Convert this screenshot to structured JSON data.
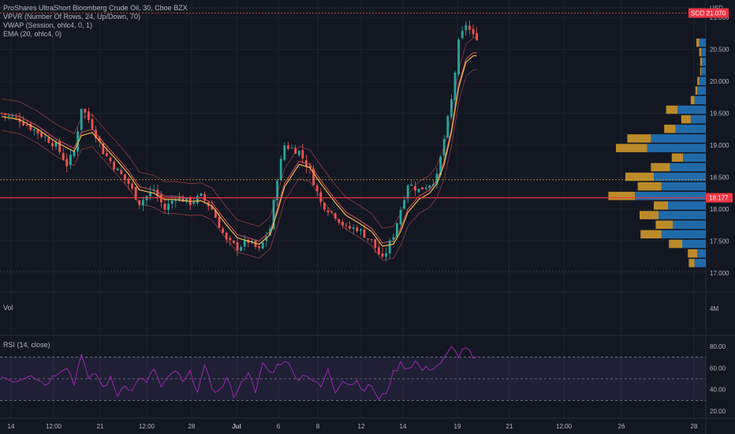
{
  "legend": {
    "title": "ProShares UltraShort Bloomberg Crude Oil, 30, Cboe BZX",
    "vpvr": "VPVR (Number Of Rows, 24, Up/Down, 70)",
    "vwap": "VWAP (Session, ohlc4, 0, 1)",
    "ema": "EMA (20, ohlc4, 0)",
    "vol": "Vol",
    "rsi": "RSI (14, close)"
  },
  "price_axis": {
    "currency": "USD",
    "vol_tick": "4M"
  },
  "price_tag": {
    "symbol": "SCO",
    "price": "21.070"
  },
  "cursor_price": "18.177",
  "chart_data": {
    "type": "candlestick",
    "title": "ProShares UltraShort Bloomberg Crude Oil, 30, Cboe BZX",
    "x_ticks": [
      "14",
      "12:00",
      "21",
      "12:00",
      "28",
      "Jul",
      "6",
      "8",
      "12",
      "14",
      "19",
      "21",
      "12:00",
      "26",
      "28"
    ],
    "y_ticks": [
      "17.000",
      "17.500",
      "18.000",
      "18.500",
      "19.000",
      "19.500",
      "20.000",
      "20.500",
      "21.000"
    ],
    "ylim": [
      16.95,
      21.15
    ],
    "close_path": [
      [
        0,
        19.5
      ],
      [
        5,
        19.4
      ],
      [
        10,
        19.2
      ],
      [
        15,
        19.0
      ],
      [
        18,
        18.7
      ],
      [
        20,
        18.9
      ],
      [
        22,
        19.6
      ],
      [
        25,
        19.3
      ],
      [
        28,
        18.9
      ],
      [
        32,
        18.6
      ],
      [
        35,
        18.4
      ],
      [
        38,
        18.1
      ],
      [
        42,
        18.3
      ],
      [
        45,
        18.0
      ],
      [
        48,
        18.2
      ],
      [
        52,
        18.1
      ],
      [
        55,
        18.2
      ],
      [
        58,
        18.0
      ],
      [
        62,
        17.5
      ],
      [
        65,
        17.4
      ],
      [
        68,
        17.5
      ],
      [
        71,
        17.35
      ],
      [
        74,
        17.7
      ],
      [
        76,
        18.5
      ],
      [
        78,
        19.0
      ],
      [
        82,
        18.9
      ],
      [
        85,
        18.6
      ],
      [
        88,
        18.1
      ],
      [
        92,
        17.9
      ],
      [
        95,
        17.7
      ],
      [
        98,
        17.7
      ],
      [
        102,
        17.5
      ],
      [
        105,
        17.2
      ],
      [
        108,
        17.6
      ],
      [
        110,
        18.0
      ],
      [
        112,
        18.4
      ],
      [
        115,
        18.3
      ],
      [
        118,
        18.4
      ],
      [
        120,
        18.5
      ],
      [
        122,
        19.1
      ],
      [
        124,
        19.7
      ],
      [
        126,
        20.6
      ],
      [
        128,
        20.9
      ],
      [
        130,
        20.7
      ]
    ],
    "ema_path": [
      [
        0,
        19.45
      ],
      [
        5,
        19.4
      ],
      [
        10,
        19.25
      ],
      [
        15,
        19.05
      ],
      [
        20,
        18.9
      ],
      [
        22,
        19.15
      ],
      [
        25,
        19.2
      ],
      [
        28,
        19.0
      ],
      [
        32,
        18.75
      ],
      [
        35,
        18.55
      ],
      [
        38,
        18.3
      ],
      [
        42,
        18.25
      ],
      [
        45,
        18.15
      ],
      [
        48,
        18.15
      ],
      [
        52,
        18.12
      ],
      [
        55,
        18.13
      ],
      [
        58,
        18.05
      ],
      [
        62,
        17.75
      ],
      [
        65,
        17.55
      ],
      [
        68,
        17.5
      ],
      [
        71,
        17.45
      ],
      [
        74,
        17.6
      ],
      [
        76,
        17.95
      ],
      [
        78,
        18.35
      ],
      [
        82,
        18.7
      ],
      [
        85,
        18.65
      ],
      [
        88,
        18.4
      ],
      [
        92,
        18.1
      ],
      [
        95,
        17.9
      ],
      [
        98,
        17.8
      ],
      [
        102,
        17.65
      ],
      [
        105,
        17.42
      ],
      [
        108,
        17.45
      ],
      [
        110,
        17.65
      ],
      [
        112,
        17.95
      ],
      [
        115,
        18.15
      ],
      [
        118,
        18.25
      ],
      [
        120,
        18.4
      ],
      [
        122,
        18.7
      ],
      [
        124,
        19.2
      ],
      [
        126,
        19.9
      ],
      [
        128,
        20.3
      ],
      [
        130,
        20.4
      ]
    ],
    "volume_profile": [
      {
        "price": 17.15,
        "up": 6,
        "down": 12
      },
      {
        "price": 17.3,
        "up": 10,
        "down": 9
      },
      {
        "price": 17.45,
        "up": 14,
        "down": 25
      },
      {
        "price": 17.6,
        "up": 22,
        "down": 47
      },
      {
        "price": 17.75,
        "up": 18,
        "down": 35
      },
      {
        "price": 17.9,
        "up": 20,
        "down": 50
      },
      {
        "price": 18.05,
        "up": 15,
        "down": 40
      },
      {
        "price": 18.2,
        "up": 28,
        "down": 75
      },
      {
        "price": 18.35,
        "up": 25,
        "down": 47
      },
      {
        "price": 18.5,
        "up": 30,
        "down": 55
      },
      {
        "price": 18.65,
        "up": 20,
        "down": 38
      },
      {
        "price": 18.8,
        "up": 12,
        "down": 24
      },
      {
        "price": 18.95,
        "up": 33,
        "down": 62
      },
      {
        "price": 19.1,
        "up": 25,
        "down": 58
      },
      {
        "price": 19.25,
        "up": 12,
        "down": 32
      },
      {
        "price": 19.4,
        "up": 10,
        "down": 16
      },
      {
        "price": 19.55,
        "up": 12,
        "down": 30
      },
      {
        "price": 19.7,
        "up": 4,
        "down": 12
      },
      {
        "price": 19.85,
        "up": 2,
        "down": 9
      },
      {
        "price": 20.0,
        "up": 2,
        "down": 7
      },
      {
        "price": 20.15,
        "up": 1,
        "down": 5
      },
      {
        "price": 20.3,
        "up": 2,
        "down": 4
      },
      {
        "price": 20.45,
        "up": 2,
        "down": 5
      },
      {
        "price": 20.6,
        "up": 3,
        "down": 7
      }
    ],
    "rsi": {
      "y_ticks": [
        "20.00",
        "40.00",
        "60.00",
        "80.00"
      ],
      "ylim": [
        15,
        85
      ],
      "upper_band": 70,
      "middle": 50,
      "lower_band": 30,
      "path": [
        [
          0,
          52
        ],
        [
          4,
          48
        ],
        [
          8,
          55
        ],
        [
          12,
          45
        ],
        [
          16,
          58
        ],
        [
          18,
          62
        ],
        [
          20,
          45
        ],
        [
          22,
          75
        ],
        [
          24,
          48
        ],
        [
          26,
          55
        ],
        [
          28,
          42
        ],
        [
          30,
          50
        ],
        [
          32,
          35
        ],
        [
          34,
          46
        ],
        [
          36,
          38
        ],
        [
          38,
          52
        ],
        [
          40,
          45
        ],
        [
          42,
          60
        ],
        [
          44,
          42
        ],
        [
          46,
          50
        ],
        [
          48,
          58
        ],
        [
          50,
          46
        ],
        [
          52,
          55
        ],
        [
          54,
          40
        ],
        [
          56,
          60
        ],
        [
          58,
          42
        ],
        [
          60,
          38
        ],
        [
          62,
          50
        ],
        [
          64,
          35
        ],
        [
          66,
          45
        ],
        [
          68,
          58
        ],
        [
          70,
          35
        ],
        [
          72,
          65
        ],
        [
          74,
          55
        ],
        [
          76,
          62
        ],
        [
          78,
          68
        ],
        [
          80,
          58
        ],
        [
          82,
          50
        ],
        [
          84,
          55
        ],
        [
          86,
          48
        ],
        [
          88,
          42
        ],
        [
          90,
          58
        ],
        [
          92,
          38
        ],
        [
          94,
          50
        ],
        [
          96,
          45
        ],
        [
          98,
          48
        ],
        [
          100,
          40
        ],
        [
          102,
          44
        ],
        [
          104,
          30
        ],
        [
          106,
          38
        ],
        [
          108,
          55
        ],
        [
          110,
          64
        ],
        [
          112,
          60
        ],
        [
          114,
          66
        ],
        [
          116,
          58
        ],
        [
          118,
          60
        ],
        [
          120,
          62
        ],
        [
          122,
          68
        ],
        [
          124,
          78
        ],
        [
          126,
          72
        ],
        [
          128,
          80
        ],
        [
          130,
          68
        ]
      ]
    }
  }
}
